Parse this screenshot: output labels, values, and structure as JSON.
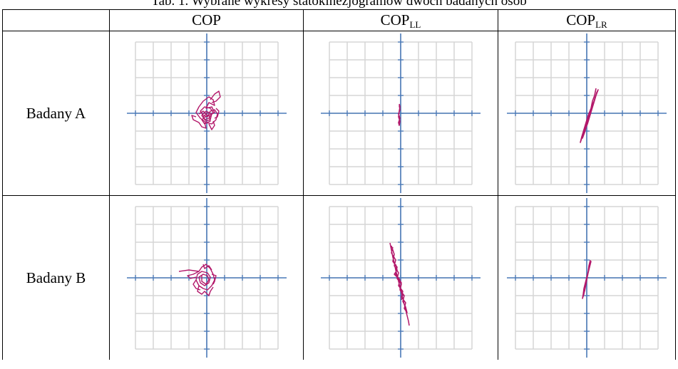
{
  "caption": "Tab. 1. Wybrane wykresy statokinezjogramów dwóch badanych osób",
  "columns": [
    {
      "main": "COP",
      "sub": ""
    },
    {
      "main": "COP",
      "sub": "LL"
    },
    {
      "main": "COP",
      "sub": "LR"
    }
  ],
  "rows": [
    {
      "label": "Badany A"
    },
    {
      "label": "Badany B"
    }
  ],
  "colors": {
    "grid": "#d6d6d6",
    "axis": "#4a7ab8",
    "trace": "#b3186a"
  }
}
